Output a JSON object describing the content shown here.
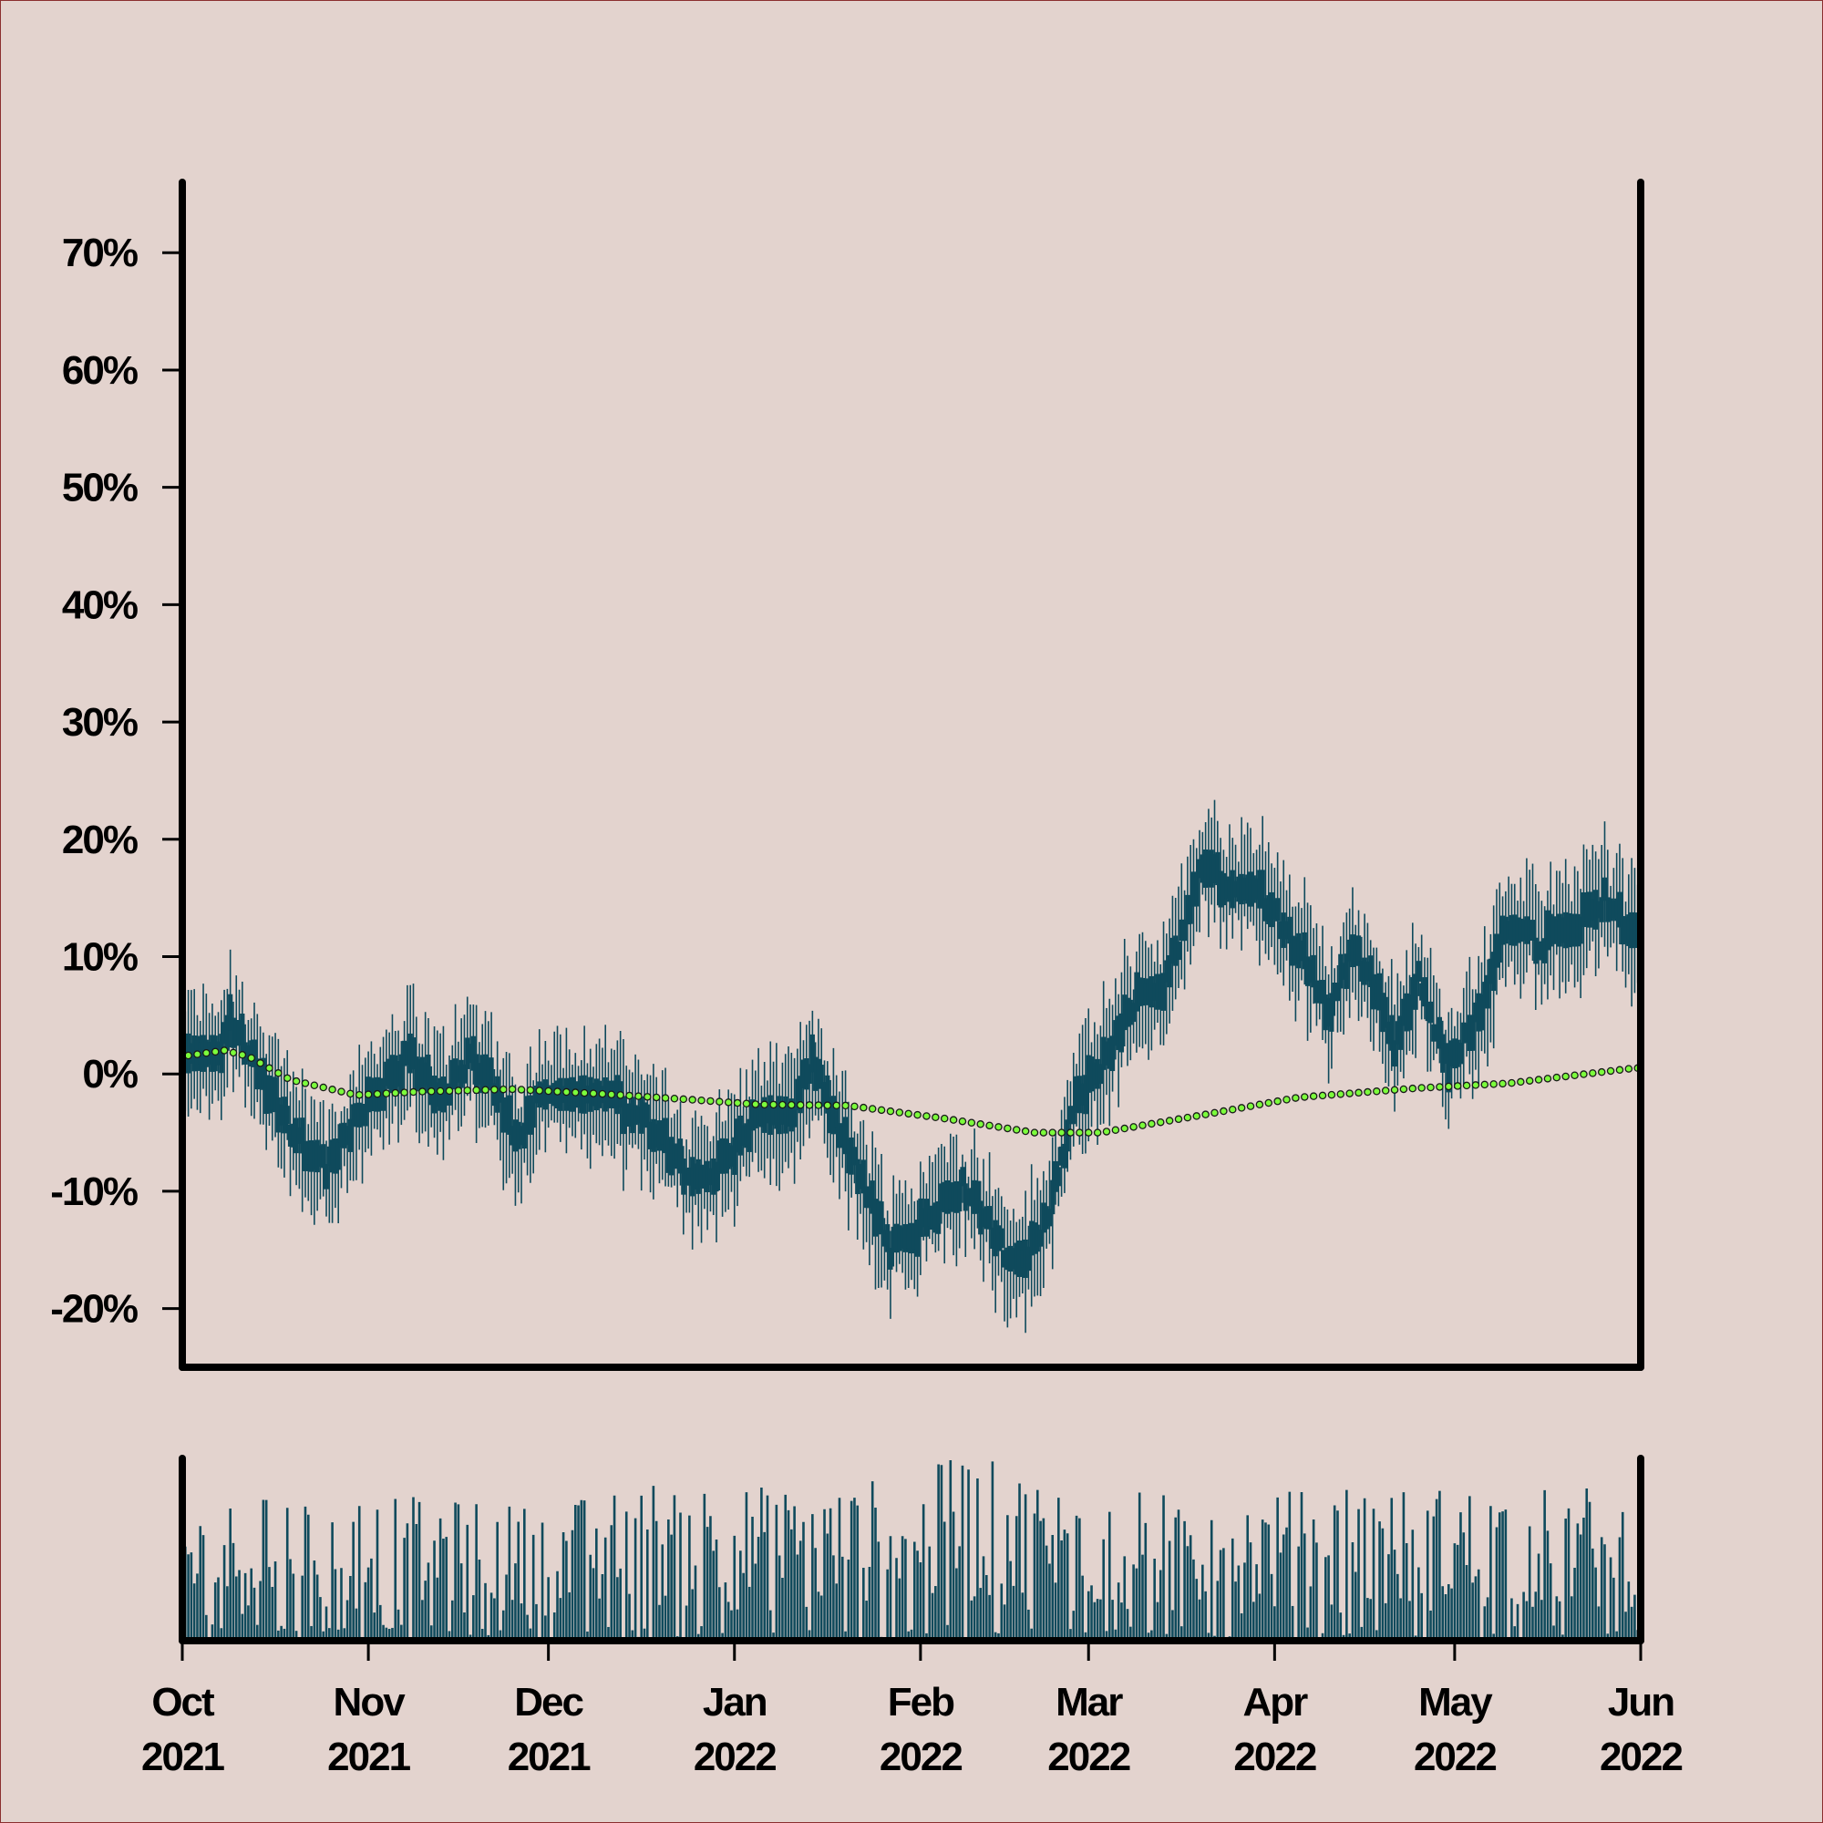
{
  "chart_data": {
    "type": "candlestick",
    "title": "",
    "xlabel": "",
    "ylabel": "",
    "grid": false,
    "legend": "none",
    "colors": {
      "background": "#e3d3ce",
      "candle": "#0f4a5c",
      "moving_average_fill": "#7cfc3c",
      "moving_average_edge": "#1a1a1a",
      "volume": "#0f4a5c",
      "axis": "#000000"
    },
    "x_range": [
      "2021-10-01",
      "2022-06-01"
    ],
    "y_range": [
      -0.25,
      0.76
    ],
    "y_ticks": [
      {
        "value": -0.2,
        "label": "-20%"
      },
      {
        "value": -0.1,
        "label": "-10%"
      },
      {
        "value": 0.0,
        "label": "0%"
      },
      {
        "value": 0.1,
        "label": "10%"
      },
      {
        "value": 0.2,
        "label": "20%"
      },
      {
        "value": 0.3,
        "label": "30%"
      },
      {
        "value": 0.4,
        "label": "40%"
      },
      {
        "value": 0.5,
        "label": "50%"
      },
      {
        "value": 0.6,
        "label": "60%"
      },
      {
        "value": 0.7,
        "label": "70%"
      }
    ],
    "x_ticks": [
      {
        "date": "2021-10-01",
        "month": "Oct",
        "year": "2021"
      },
      {
        "date": "2021-11-01",
        "month": "Nov",
        "year": "2021"
      },
      {
        "date": "2021-12-01",
        "month": "Dec",
        "year": "2021"
      },
      {
        "date": "2022-01-01",
        "month": "Jan",
        "year": "2022"
      },
      {
        "date": "2022-02-01",
        "month": "Feb",
        "year": "2022"
      },
      {
        "date": "2022-03-01",
        "month": "Mar",
        "year": "2022"
      },
      {
        "date": "2022-04-01",
        "month": "Apr",
        "year": "2022"
      },
      {
        "date": "2022-05-01",
        "month": "May",
        "year": "2022"
      },
      {
        "date": "2022-06-01",
        "month": "Jun",
        "year": "2022"
      }
    ],
    "price_path": [
      {
        "date": "2021-10-01",
        "value": 0.01
      },
      {
        "date": "2021-10-07",
        "value": 0.015
      },
      {
        "date": "2021-10-09",
        "value": 0.045
      },
      {
        "date": "2021-10-13",
        "value": 0.01
      },
      {
        "date": "2021-10-17",
        "value": -0.03
      },
      {
        "date": "2021-10-22",
        "value": -0.065
      },
      {
        "date": "2021-10-25",
        "value": -0.08
      },
      {
        "date": "2021-10-29",
        "value": -0.045
      },
      {
        "date": "2021-11-05",
        "value": 0.0
      },
      {
        "date": "2021-11-08",
        "value": 0.015
      },
      {
        "date": "2021-11-13",
        "value": -0.02
      },
      {
        "date": "2021-11-18",
        "value": 0.015
      },
      {
        "date": "2021-11-22",
        "value": -0.01
      },
      {
        "date": "2021-11-26",
        "value": -0.06
      },
      {
        "date": "2021-11-29",
        "value": -0.025
      },
      {
        "date": "2021-12-13",
        "value": -0.025
      },
      {
        "date": "2021-12-18",
        "value": -0.045
      },
      {
        "date": "2021-12-26",
        "value": -0.095
      },
      {
        "date": "2021-12-31",
        "value": -0.07
      },
      {
        "date": "2022-01-05",
        "value": -0.035
      },
      {
        "date": "2022-01-10",
        "value": -0.04
      },
      {
        "date": "2022-01-14",
        "value": 0.01
      },
      {
        "date": "2022-01-18",
        "value": -0.04
      },
      {
        "date": "2022-01-23",
        "value": -0.1
      },
      {
        "date": "2022-01-27",
        "value": -0.15
      },
      {
        "date": "2022-02-01",
        "value": -0.13
      },
      {
        "date": "2022-02-08",
        "value": -0.095
      },
      {
        "date": "2022-02-12",
        "value": -0.125
      },
      {
        "date": "2022-02-17",
        "value": -0.165
      },
      {
        "date": "2022-02-22",
        "value": -0.125
      },
      {
        "date": "2022-02-27",
        "value": -0.02
      },
      {
        "date": "2022-03-03",
        "value": 0.005
      },
      {
        "date": "2022-03-09",
        "value": 0.065
      },
      {
        "date": "2022-03-14",
        "value": 0.08
      },
      {
        "date": "2022-03-20",
        "value": 0.18
      },
      {
        "date": "2022-03-23",
        "value": 0.165
      },
      {
        "date": "2022-03-28",
        "value": 0.165
      },
      {
        "date": "2022-04-01",
        "value": 0.135
      },
      {
        "date": "2022-04-07",
        "value": 0.09
      },
      {
        "date": "2022-04-10",
        "value": 0.055
      },
      {
        "date": "2022-04-14",
        "value": 0.105
      },
      {
        "date": "2022-04-18",
        "value": 0.07
      },
      {
        "date": "2022-04-21",
        "value": 0.025
      },
      {
        "date": "2022-04-25",
        "value": 0.08
      },
      {
        "date": "2022-04-30",
        "value": 0.005
      },
      {
        "date": "2022-05-05",
        "value": 0.05
      },
      {
        "date": "2022-05-10",
        "value": 0.13
      },
      {
        "date": "2022-05-15",
        "value": 0.11
      },
      {
        "date": "2022-05-22",
        "value": 0.13
      },
      {
        "date": "2022-05-26",
        "value": 0.15
      },
      {
        "date": "2022-05-31",
        "value": 0.115
      }
    ],
    "moving_average": [
      {
        "date": "2021-10-01",
        "value": 0.015
      },
      {
        "date": "2021-10-08",
        "value": 0.02
      },
      {
        "date": "2021-10-12",
        "value": 0.015
      },
      {
        "date": "2021-10-19",
        "value": -0.005
      },
      {
        "date": "2021-10-30",
        "value": -0.018
      },
      {
        "date": "2021-11-10",
        "value": -0.015
      },
      {
        "date": "2021-11-25",
        "value": -0.013
      },
      {
        "date": "2021-12-10",
        "value": -0.017
      },
      {
        "date": "2021-12-25",
        "value": -0.022
      },
      {
        "date": "2022-01-05",
        "value": -0.026
      },
      {
        "date": "2022-01-20",
        "value": -0.027
      },
      {
        "date": "2022-02-05",
        "value": -0.038
      },
      {
        "date": "2022-02-20",
        "value": -0.05
      },
      {
        "date": "2022-03-03",
        "value": -0.05
      },
      {
        "date": "2022-03-20",
        "value": -0.035
      },
      {
        "date": "2022-04-05",
        "value": -0.02
      },
      {
        "date": "2022-04-25",
        "value": -0.012
      },
      {
        "date": "2022-05-10",
        "value": -0.008
      },
      {
        "date": "2022-05-31",
        "value": 0.005
      }
    ],
    "volume_trend": [
      {
        "date": "2021-10-01",
        "value": 0.45
      },
      {
        "date": "2021-10-20",
        "value": 0.5
      },
      {
        "date": "2021-11-10",
        "value": 0.48
      },
      {
        "date": "2021-12-01",
        "value": 0.45
      },
      {
        "date": "2021-12-20",
        "value": 0.55
      },
      {
        "date": "2022-01-15",
        "value": 0.5
      },
      {
        "date": "2022-02-10",
        "value": 0.62
      },
      {
        "date": "2022-03-01",
        "value": 0.5
      },
      {
        "date": "2022-04-01",
        "value": 0.5
      },
      {
        "date": "2022-05-01",
        "value": 0.52
      },
      {
        "date": "2022-05-31",
        "value": 0.52
      }
    ]
  }
}
